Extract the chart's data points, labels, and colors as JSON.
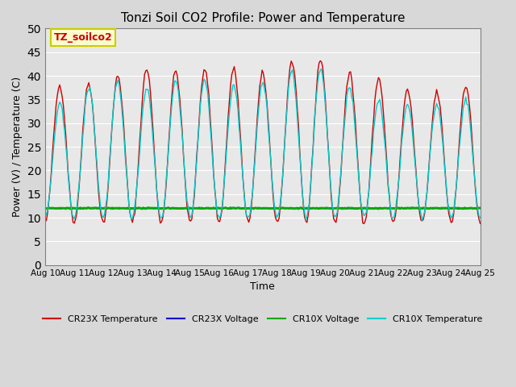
{
  "title": "Tonzi Soil CO2 Profile: Power and Temperature",
  "xlabel": "Time",
  "ylabel": "Power (V) / Temperature (C)",
  "ylim": [
    0,
    50
  ],
  "yticks": [
    0,
    5,
    10,
    15,
    20,
    25,
    30,
    35,
    40,
    45,
    50
  ],
  "x_labels": [
    "Aug 10",
    "Aug 11",
    "Aug 12",
    "Aug 13",
    "Aug 14",
    "Aug 15",
    "Aug 16",
    "Aug 17",
    "Aug 18",
    "Aug 19",
    "Aug 20",
    "Aug 21",
    "Aug 22",
    "Aug 23",
    "Aug 24",
    "Aug 25"
  ],
  "fig_bg_color": "#d8d8d8",
  "plot_bg_color": "#e8e8e8",
  "cr23x_temp_color": "#cc0000",
  "cr23x_volt_color": "#0000cc",
  "cr10x_volt_color": "#00aa00",
  "cr10x_temp_color": "#00cccc",
  "voltage_value": 12.0,
  "legend_box_color": "#ffffcc",
  "legend_box_edge": "#cccc00",
  "annotation_text": "TZ_soilco2",
  "annotation_color": "#cc0000",
  "noise_scale": 0.3,
  "cr23x_peaks": [
    37,
    39,
    38,
    42,
    41,
    41,
    42,
    41,
    40,
    46,
    41,
    40,
    39,
    35,
    38
  ],
  "cr10x_peaks": [
    33,
    35,
    40,
    37,
    38,
    40,
    38,
    38,
    39,
    43,
    40,
    35,
    35,
    33,
    35
  ],
  "cr23x_min": 9.0,
  "cr10x_min": 10.0,
  "num_days": 15
}
